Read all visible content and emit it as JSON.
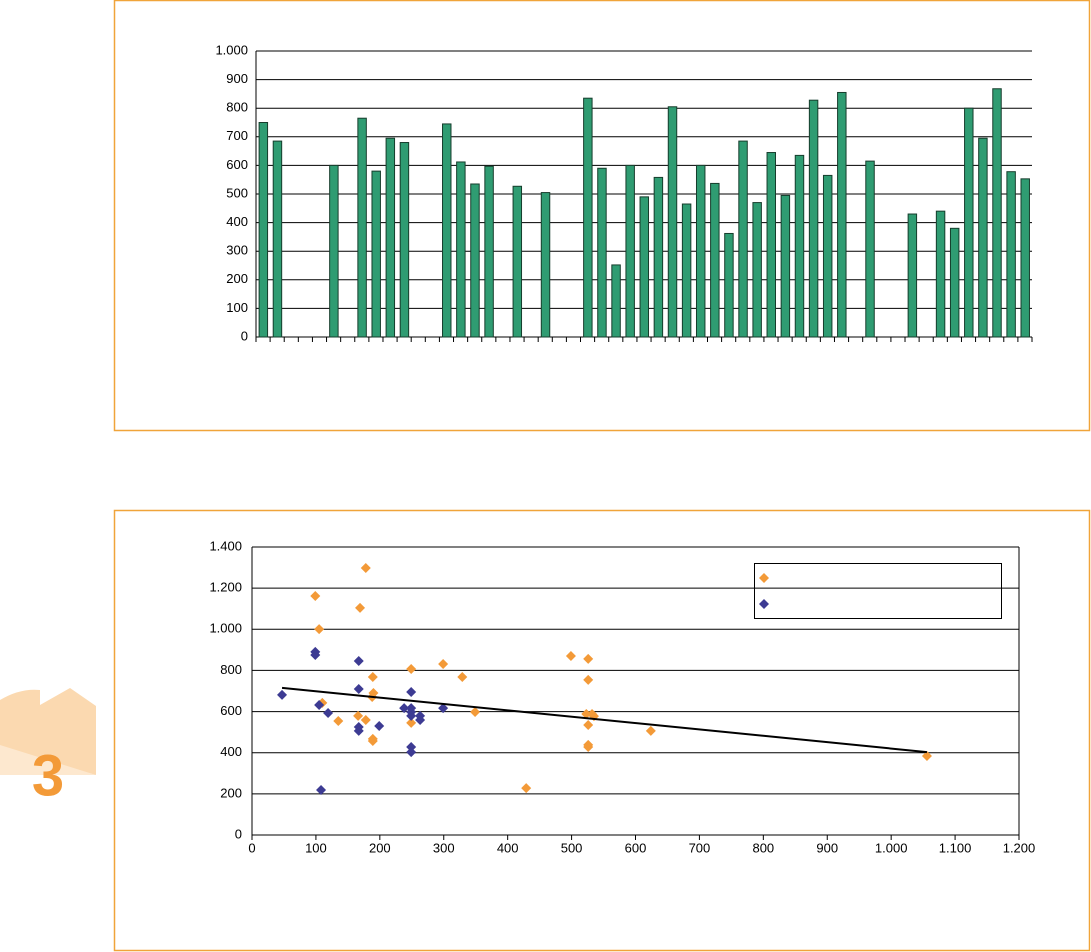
{
  "chart_data": [
    {
      "type": "bar",
      "color": "#2f9c72",
      "grid": true,
      "categories": [
        null,
        null,
        null,
        null,
        null,
        null,
        null,
        null,
        null,
        null,
        null,
        null,
        null,
        null,
        null,
        null,
        null,
        null,
        null,
        null,
        null,
        null,
        null,
        null,
        null,
        null,
        null,
        null,
        null,
        null,
        null,
        null,
        null,
        null,
        null,
        null,
        null,
        null,
        null,
        null,
        null,
        null,
        null,
        null,
        null,
        null,
        null,
        null,
        null,
        null,
        null,
        null,
        null,
        null,
        null
      ],
      "values": [
        750,
        685,
        null,
        null,
        null,
        600,
        null,
        765,
        580,
        695,
        680,
        null,
        null,
        745,
        612,
        535,
        597,
        null,
        527,
        null,
        505,
        null,
        null,
        835,
        590,
        252,
        600,
        490,
        558,
        805,
        465,
        600,
        537,
        362,
        685,
        470,
        645,
        495,
        635,
        828,
        565,
        855,
        null,
        615,
        null,
        null,
        430,
        null,
        440,
        380,
        800,
        695,
        868,
        578,
        553
      ],
      "ylim": [
        0,
        1000
      ],
      "yticks": [
        0,
        100,
        200,
        300,
        400,
        500,
        600,
        700,
        800,
        900,
        {
          "value": 1000,
          "label": "1.000"
        }
      ]
    },
    {
      "type": "scatter",
      "grid": true,
      "series": [
        {
          "color": "#f39a38",
          "x": [
            99,
            105,
            178,
            169,
            189,
            190,
            188,
            249,
            299,
            329,
            349,
            110,
            135,
            166,
            178,
            189,
            189,
            249,
            429,
            499,
            526,
            526,
            523,
            532,
            526,
            526,
            526,
            624,
            1056,
            535
          ],
          "values": [
            1162,
            1001,
            1298,
            1104,
            768,
            690,
            671,
            807,
            831,
            768,
            598,
            642,
            554,
            579,
            559,
            467,
            457,
            545,
            228,
            870,
            856,
            754,
            588,
            588,
            535,
            438,
            428,
            506,
            384,
            578
          ]
        },
        {
          "color": "#3d3b93",
          "x": [
            47,
            99,
            99,
            105,
            119,
            167,
            167,
            167,
            167,
            199,
            238,
            249,
            249,
            249,
            249,
            263,
            263,
            299,
            249,
            249,
            108
          ],
          "values": [
            681,
            890,
            875,
            632,
            593,
            846,
            710,
            525,
            506,
            530,
            617,
            617,
            695,
            598,
            579,
            579,
            559,
            617,
            428,
            403,
            219
          ]
        }
      ],
      "trendline": {
        "x": [
          47,
          1056
        ],
        "values": [
          715,
          403
        ]
      },
      "xlim": [
        0,
        1200
      ],
      "xticks": [
        0,
        100,
        200,
        300,
        400,
        500,
        600,
        700,
        800,
        900,
        {
          "value": 1000,
          "label": "1.000"
        },
        {
          "value": 1100,
          "label": "1.100"
        },
        {
          "value": 1200,
          "label": "1.200"
        }
      ],
      "ylim": [
        0,
        1400
      ],
      "yticks": [
        0,
        200,
        400,
        600,
        800,
        {
          "value": 1000,
          "label": "1.000"
        },
        {
          "value": 1200,
          "label": "1.200"
        },
        {
          "value": 1400,
          "label": "1.400"
        }
      ]
    }
  ]
}
